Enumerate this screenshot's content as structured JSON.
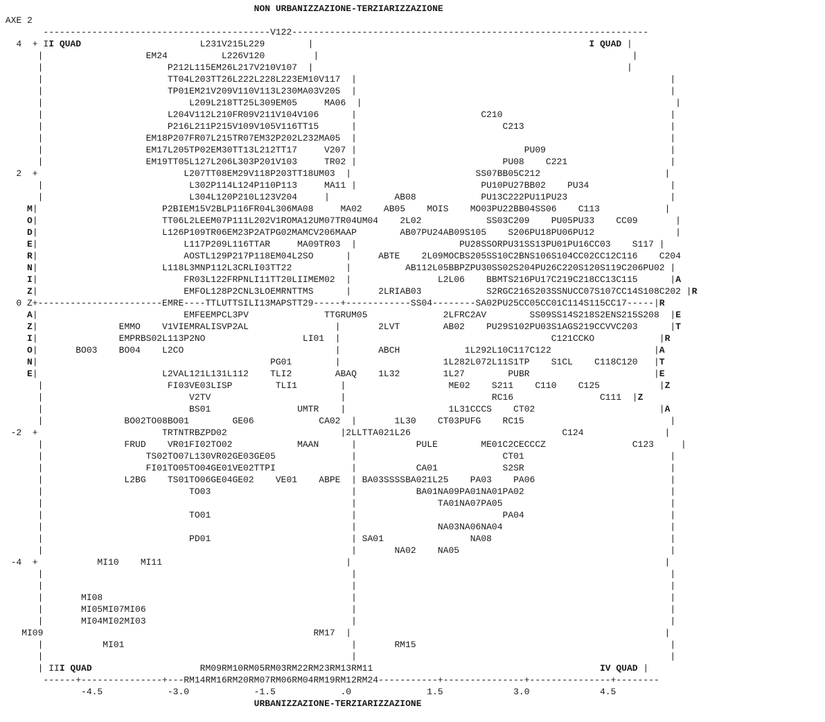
{
  "chart_data": {
    "type": "scatter",
    "title": "NON URBANIZZAZIONE-TERZIARIZZAZIONE",
    "xlabel": "URBANIZZAZIONE-TERZIARIZZAZIONE",
    "ylabel": "AXE 2",
    "x_axis_name": "V122",
    "left_axis_label": "MODERNIZZAZIONE",
    "right_axis_label": "ARRETRATEZZA",
    "quadrant_labels": [
      "I QUAD",
      "II QUAD",
      "III QUAD",
      "IV QUAD"
    ],
    "xlim": [
      -5.0,
      5.0
    ],
    "ylim": [
      -5.3,
      4.3
    ],
    "x_ticks": [
      "-4.5",
      "-3.0",
      "-1.5",
      ".0",
      "1.5",
      "3.0",
      "4.5"
    ],
    "y_ticks": [
      "4",
      "2",
      "0",
      "-2",
      "-4"
    ],
    "grid": false,
    "lines": [
      "                                               NON URBANIZZAZIONE-TERZIARIZZAZIONE",
      " AXE 2",
      "        ------------------------------------------V122------------------------------------------------------------------",
      "   4  + II QUAD                      L231V215L229        |                                                   I QUAD |",
      "       |                   EM24          L226V120         |                                                          |",
      "       |                       P212L115EM26L217V210V107  |                                                          |",
      "       |                       TT04L203TT26L222L228L223EM10V117  |                                                          |",
      "       |                       TP01EM21V209V110V113L230MA03V205  |                                                          |",
      "       |                           L209L218TT25L309EM05     MA06  |                                                          |",
      "       |                       L204V112L210FR09V211V104V106      |                       C210                               |",
      "       |                       P216L211P215V109V105V116TT15      |                           C213                           |",
      "       |                   EM18P207FR07L215TR07EM32P202L232MA05  |                                                          |",
      "       |                   EM17L205TP02EM30TT13L212TT17     V207 |                               PU09                       |",
      "       |                   EM19TT05L127L206L303P201V103     TR02 |                           PU08    C221                   |",
      "   2  +                           L207TT08EM29V118P203TT18UM03  |                       SS07BB05C212                       |",
      "       |                           L302P114L124P110P113     MA11 |                       PU10PU27BB02    PU34               |",
      "       |                           L304L120P210L123V204     |            AB08            PU13C222PU11PU23                   |",
      "     M|                       P2BIEM15V2BLP116FR04L306MA08     MA02    AB05    MOIS    MO03PU22BB04SS06    C113            |",
      "     O|                       TT06L2LEEM07P111L202V1ROMA12UM07TR04UM04    2L02            SS03C209    PU05PU33    CC09       |",
      "     D|                       L126P109TR06EM23P2ATPG02MAMCV206MAAP        AB07PU24AB09S105    S206PU18PU06PU12               |",
      "     E|                           L117P209L116TTAR     MA09TR03  |                   PU28SSORPU31SS13PU01PU16CC03    S117 |",
      "     R|                           AOSTL129P217P118EM04L2SO      |     ABTE    2L09MOCBS205SS10C2BNS106S104CC02CC12C116    C204",
      "     N|                       L118L3MNP112L3CRLI03TT22          |          AB112L05BBPZPU30SS02S204PU26C220S120S119C206PU02 |",
      "     I|                           FR03L122FRPNLI11TT20LIIMEM02  |                L2L06    BBMTS216PU17C219C218CC13C115      |A",
      "     Z|                           EMFOL128P2CNL3LOEMRNTTMS      |     2LRIAB03            S2RGC216S203SSNUCC07S107CC14S108C202 |R",
      "   0 Z+-----------------------EMRE----TTLUTTSILI13MAPSTT29-----+------------SS04--------SA02PU25CC05CC01C114S115CC17-----|R",
      "     A|                           EMFEEMPCL3PV              TTGRUM05              2LFRC2AV        SS09SS14S218S2ENS215S208  |E",
      "     Z|               EMMO    V1VIEMRALISVP2AL                |       2LVT        AB02    PU29S102PU03S1AGS219CCVVC203      |T",
      "     I|               EMPRBS02L113P2NO                  LI01  |                                       C121CCKO            |R",
      "     O|       BO03    BO04    L2CO                            |       ABCH            1L292L10C117C122                   |A",
      "     N|                                           PG01        |                   1L282L072L11S1TP    S1CL    C118C120   |T",
      "     E|                       L2VAL121L131L112    TLI2        ABAQ    1L32        1L27        PUBR                       |E",
      "       |                       FI03VE03LISP        TLI1        |                   ME02    S211    C110    C125           |Z",
      "       |                           V2TV                        |                           RC16                C111  |Z",
      "       |                           BS01                UMTR    |                   1L31CCCS    CT02                       |A",
      "       |               BO02TO08BO01        GE06            CA02  |       1L30    CT03PUFG    RC15                           |",
      "  -2  +                       TRTNTRBZPD02                     |2LLTTA021L26                            C124               |",
      "       |               FRUD    VR01FI02TO02            MAAN      |           PULE        ME01C2CECCCZ                C123     |",
      "       |                   TS02TO07L130VR02GE03GE05              |                           CT01                           |",
      "       |                   FI01TO05TO04GE01VE02TTPI              |           CA01            S2SR                           |",
      "       |               L2BG    TS01TO06GE04GE02    VE01    ABPE  | BA03SSSSBA021L25    PA03    PA06                         |",
      "       |                           TO03                          |           BA01NA09PA01NA01PA02                           |",
      "       |                                                         |               TA01NA07PA05                               |",
      "       |                           TO01                          |                           PA04                           |",
      "       |                                                         |               NA03NA06NA04                               |",
      "       |                           PD01                          | SA01                NA08                                 |",
      "       |                                                         |       NA02    NA05                                       |",
      "  -4  +           MI10    MI11                                  |                                                          |",
      "       |                                                         |                                                          |",
      "       |                                                         |                                                          |",
      "       |       MI08                                              |                                                          |",
      "       |       MI05MI07MI06                                      |                                                          |",
      "       |       MI04MI02MI03                                      |                                                          |",
      "    MI09                                                  RM17  |                                                          |",
      "       |           MI01                                          |       RM15                                               |",
      "       |                                                         |                                                          |",
      "       | III QUAD                    RM09RM10RM05RM03RM22RM23RM13RM11                                          IV QUAD |",
      "        ------+---------------+---RM14RM16RM20RM07RM06RM04RM19RM12RM24-----------+---------------+---------------+--------",
      "               -4.5            -3.0            -1.5            .0              1.5             3.0             4.5",
      "                                               URBANIZZAZIONE-TERZIARIZZAZIONE"
    ]
  }
}
